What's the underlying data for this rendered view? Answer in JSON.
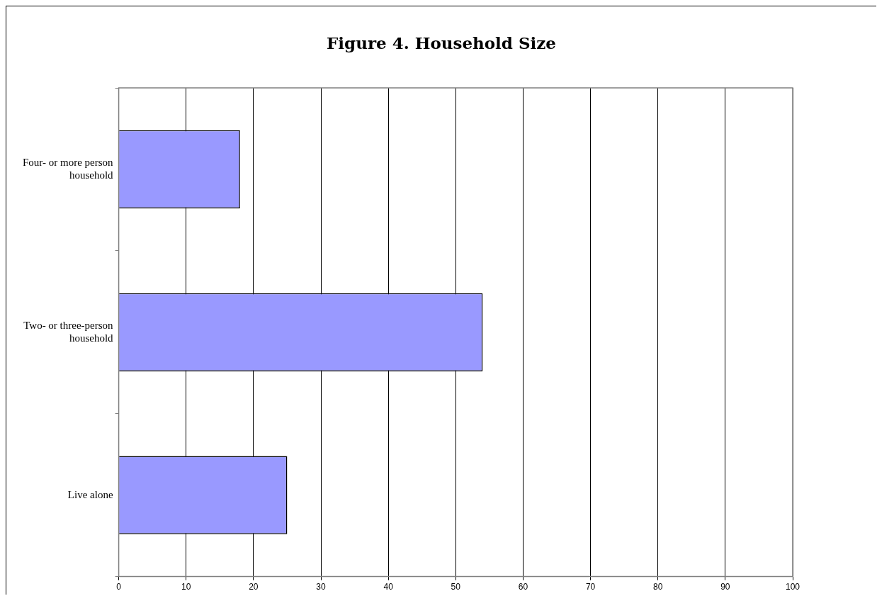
{
  "chart_data": {
    "type": "bar",
    "title": "Figure 4.  Household Size",
    "orientation": "horizontal",
    "categories": [
      "Four- or more person household",
      "Two- or three-person household",
      "Live alone"
    ],
    "values": [
      18,
      54,
      25
    ],
    "color": "#9999ff",
    "xlim": [
      0,
      100
    ],
    "xticks": [
      0,
      10,
      20,
      30,
      40,
      50,
      60,
      70,
      80,
      90,
      100
    ],
    "grid": "x",
    "legend": false
  }
}
